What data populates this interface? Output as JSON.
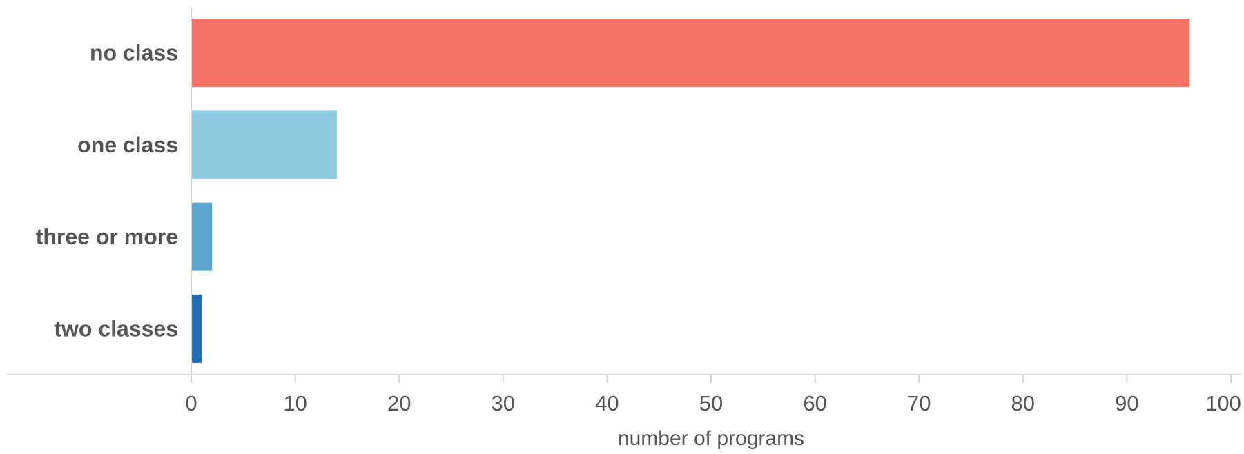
{
  "chart_data": {
    "type": "bar",
    "orientation": "horizontal",
    "categories": [
      "no class",
      "one class",
      "three or more",
      "two classes"
    ],
    "values": [
      96,
      14,
      2,
      1
    ],
    "colors": [
      "#f47265",
      "#90ccdf",
      "#5ca6d0",
      "#1f6fb2"
    ],
    "title": "",
    "xlabel": "number of programs",
    "ylabel": "",
    "xlim": [
      0,
      100
    ],
    "xticks": [
      0,
      10,
      20,
      30,
      40,
      50,
      60,
      70,
      80,
      90,
      100
    ],
    "xtick_labels": [
      "0",
      "10",
      "20",
      "30",
      "40",
      "50",
      "60",
      "70",
      "80",
      "90",
      "100"
    ],
    "grid": false,
    "legend": "none"
  }
}
